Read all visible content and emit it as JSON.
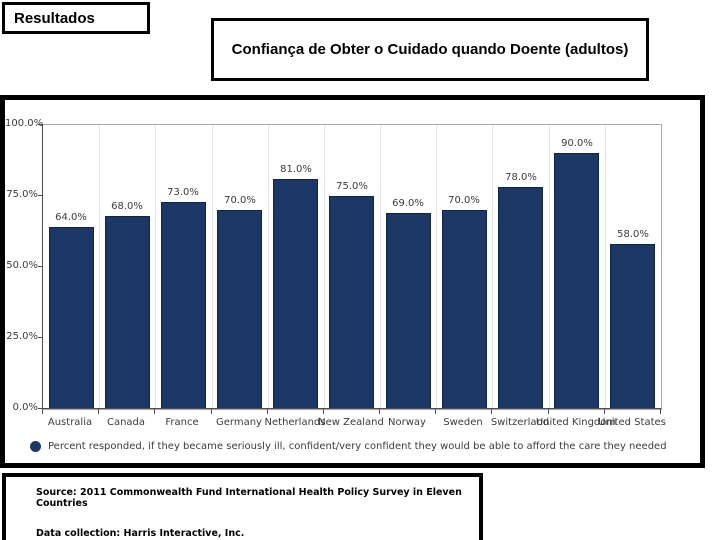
{
  "slide": {
    "tag_label": "Resultados",
    "title": "Confiança de Obter o Cuidado quando Doente (adultos)"
  },
  "chart_data": {
    "type": "bar",
    "title": "Confiança de Obter o Cuidado quando Doente (adultos)",
    "categories": [
      "Australia",
      "Canada",
      "France",
      "Germany",
      "Netherlands",
      "New Zealand",
      "Norway",
      "Sweden",
      "Switzerland",
      "United Kingdom",
      "United States"
    ],
    "values": [
      64,
      68,
      73,
      70,
      81,
      75,
      69,
      70,
      78,
      90,
      58
    ],
    "value_labels": [
      "64.0%",
      "68.0%",
      "73.0%",
      "70.0%",
      "81.0%",
      "75.0%",
      "69.0%",
      "70.0%",
      "78.0%",
      "90.0%",
      "58.0%"
    ],
    "y_ticks": [
      100,
      75,
      50,
      25,
      0
    ],
    "y_tick_labels": [
      "100.0%",
      "75.0%",
      "50.0%",
      "25.0%",
      "0.0%"
    ],
    "ylim": [
      0,
      100
    ],
    "xlabel": "",
    "ylabel": "",
    "grid": "faint vertical category separators, plot border",
    "bar_color": "#1b3866",
    "bar_border_color": "#10233f",
    "legend_position": "bottom",
    "legend": "Percent responded, if they became seriously ill, confident/very confident they would be able to afford the care they needed"
  },
  "footer": {
    "source_line": "Source: 2011 Commonwealth Fund International Health Policy Survey in Eleven Countries",
    "data_collection_line": "Data collection: Harris Interactive, Inc."
  }
}
